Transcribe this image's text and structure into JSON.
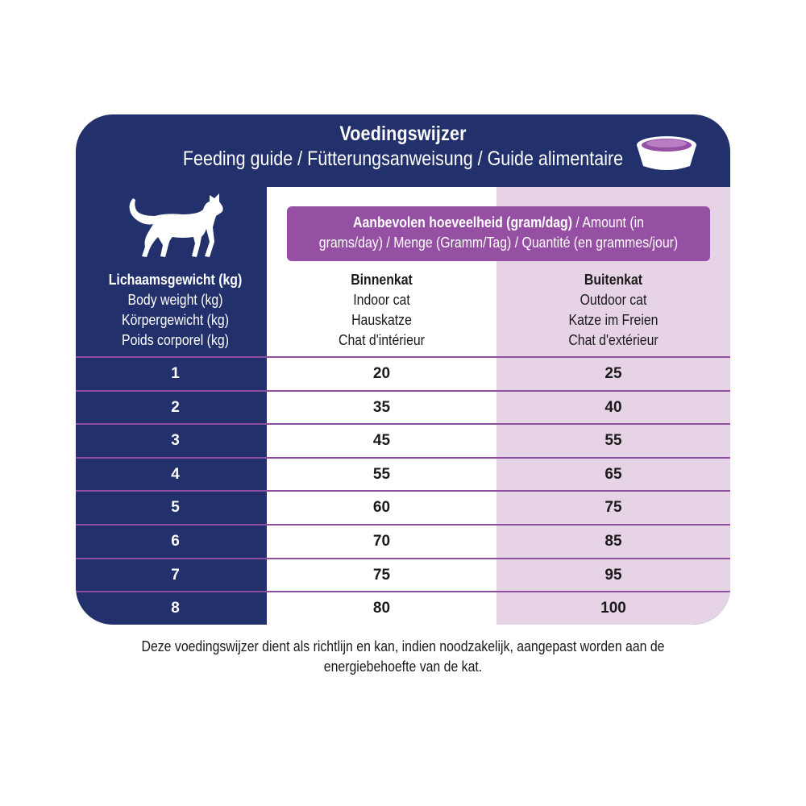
{
  "header": {
    "title": "Voedingswijzer",
    "subtitle": "Feeding guide / Fütterungsanweisung / Guide alimentaire"
  },
  "icons": {
    "cat": "cat-silhouette-icon",
    "bowl": "food-bowl-icon"
  },
  "amount": {
    "bold": "Aanbevolen hoeveelheid (gram/dag)",
    "line1_rest": " / Amount (in",
    "line2": "grams/day) / Menge (Gramm/Tag) /  Quantité (en grammes/jour)"
  },
  "columns": {
    "weight": [
      "Lichaamsgewicht (kg)",
      "Body weight (kg)",
      "Körpergewicht (kg)",
      "Poids corporel (kg)"
    ],
    "indoor": [
      "Binnenkat",
      "Indoor cat",
      "Hauskatze",
      "Chat d'intérieur"
    ],
    "outdoor": [
      "Buitenkat",
      "Outdoor cat",
      "Katze im Freien",
      "Chat d'extérieur"
    ]
  },
  "rows": [
    {
      "weight": "1",
      "indoor": "20",
      "outdoor": "25"
    },
    {
      "weight": "2",
      "indoor": "35",
      "outdoor": "40"
    },
    {
      "weight": "3",
      "indoor": "45",
      "outdoor": "55"
    },
    {
      "weight": "4",
      "indoor": "55",
      "outdoor": "65"
    },
    {
      "weight": "5",
      "indoor": "60",
      "outdoor": "75"
    },
    {
      "weight": "6",
      "indoor": "70",
      "outdoor": "85"
    },
    {
      "weight": "7",
      "indoor": "75",
      "outdoor": "95"
    },
    {
      "weight": "8",
      "indoor": "80",
      "outdoor": "100"
    }
  ],
  "footnote": [
    "Deze voedingswijzer dient als richtlijn en kan, indien noodzakelijk, aangepast worden aan de",
    "energiebehoefte van de kat."
  ],
  "colors": {
    "navy": "#22306b",
    "purple": "#9650a3",
    "lavender": "#e6d3e6",
    "separator": "#8d4fa0"
  }
}
